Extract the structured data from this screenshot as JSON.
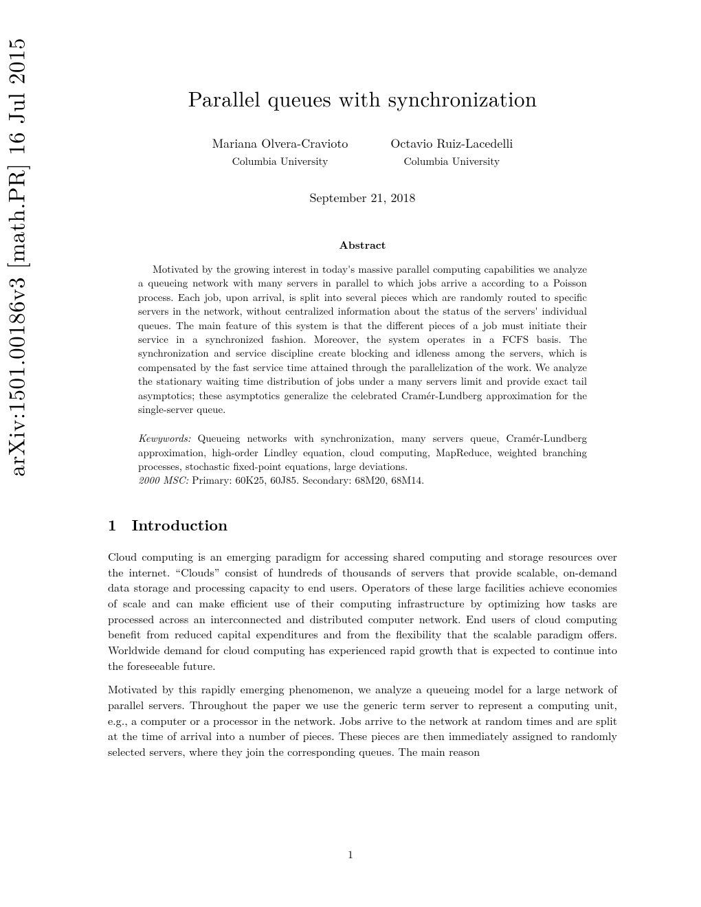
{
  "arxiv_id": "arXiv:1501.00186v3  [math.PR]  16 Jul 2015",
  "title": "Parallel queues with synchronization",
  "authors": [
    {
      "name": "Mariana Olvera-Cravioto",
      "affiliation": "Columbia University"
    },
    {
      "name": "Octavio Ruiz-Lacedelli",
      "affiliation": "Columbia University"
    }
  ],
  "date": "September 21, 2018",
  "abstract_heading": "Abstract",
  "abstract": "Motivated by the growing interest in today's massive parallel computing capabilities we analyze a queueing network with many servers in parallel to which jobs arrive a according to a Poisson process. Each job, upon arrival, is split into several pieces which are randomly routed to specific servers in the network, without centralized information about the status of the servers' individual queues. The main feature of this system is that the different pieces of a job must initiate their service in a synchronized fashion. Moreover, the system operates in a FCFS basis. The synchronization and service discipline create blocking and idleness among the servers, which is compensated by the fast service time attained through the parallelization of the work. We analyze the stationary waiting time distribution of jobs under a many servers limit and provide exact tail asymptotics; these asymptotics generalize the celebrated Cramér-Lundberg approximation for the single-server queue.",
  "keywords_label": "Kewywords:",
  "keywords": " Queueing networks with synchronization, many servers queue, Cramér-Lundberg approximation, high-order Lindley equation, cloud computing, MapReduce, weighted branching processes, stochastic fixed-point equations, large deviations.",
  "msc_label": "2000 MSC:",
  "msc": " Primary: 60K25, 60J85. Secondary: 68M20, 68M14.",
  "section1": {
    "number": "1",
    "title": "Introduction",
    "para1": "Cloud computing is an emerging paradigm for accessing shared computing and storage resources over the internet. “Clouds” consist of hundreds of thousands of servers that provide scalable, on-demand data storage and processing capacity to end users. Operators of these large facilities achieve economies of scale and can make efficient use of their computing infrastructure by optimizing how tasks are processed across an interconnected and distributed computer network. End users of cloud computing benefit from reduced capital expenditures and from the flexibility that the scalable paradigm offers. Worldwide demand for cloud computing has experienced rapid growth that is expected to continue into the foreseeable future.",
    "para2": "Motivated by this rapidly emerging phenomenon, we analyze a queueing model for a large network of parallel servers. Throughout the paper we use the generic term server to represent a computing unit, e.g., a computer or a processor in the network. Jobs arrive to the network at random times and are split at the time of arrival into a number of pieces. These pieces are then immediately assigned to randomly selected servers, where they join the corresponding queues. The main reason"
  },
  "page_number": "1"
}
